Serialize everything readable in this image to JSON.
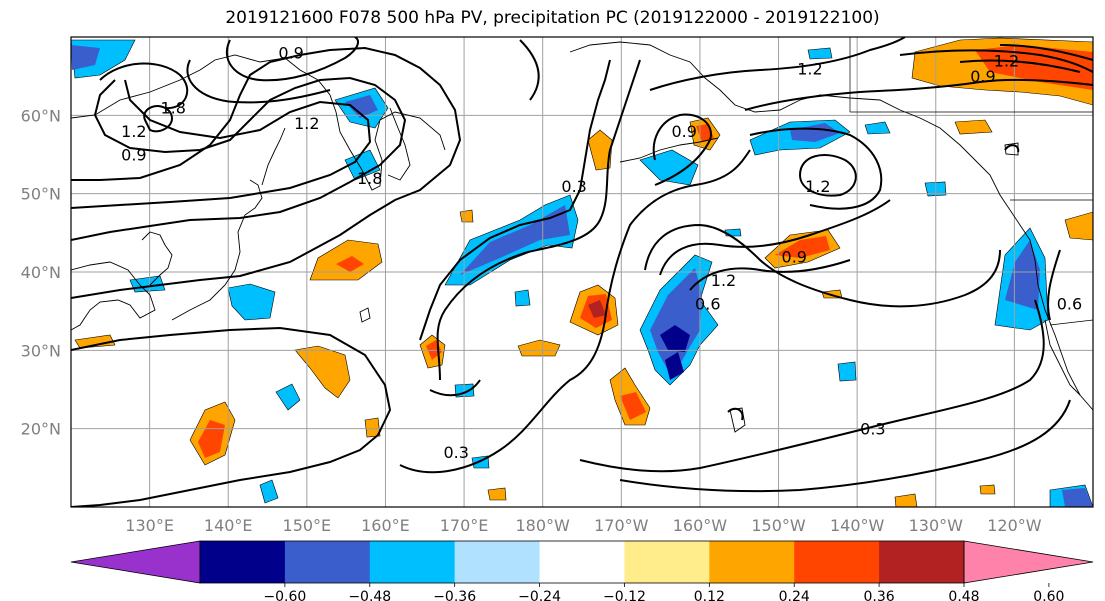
{
  "title": "2019121600 F078 500 hPa PV, precipitation PC (2019122000 - 2019122100)",
  "map": {
    "lon_range": [
      120,
      250
    ],
    "lat_range": [
      10,
      70
    ],
    "lat_ticks": [
      {
        "value": 20,
        "label": "20°N"
      },
      {
        "value": 30,
        "label": "30°N"
      },
      {
        "value": 40,
        "label": "40°N"
      },
      {
        "value": 50,
        "label": "50°N"
      },
      {
        "value": 60,
        "label": "60°N"
      }
    ],
    "lon_ticks": [
      {
        "value": 130,
        "label": "130°E"
      },
      {
        "value": 140,
        "label": "140°E"
      },
      {
        "value": 150,
        "label": "150°E"
      },
      {
        "value": 160,
        "label": "160°E"
      },
      {
        "value": 170,
        "label": "170°E"
      },
      {
        "value": 180,
        "label": "180°W"
      },
      {
        "value": 190,
        "label": "170°W"
      },
      {
        "value": 200,
        "label": "160°W"
      },
      {
        "value": 210,
        "label": "150°W"
      },
      {
        "value": 220,
        "label": "140°W"
      },
      {
        "value": 230,
        "label": "130°W"
      },
      {
        "value": 240,
        "label": "120°W"
      }
    ],
    "contour_labels": [
      {
        "text": "0.9",
        "lon": 148,
        "lat": 68
      },
      {
        "text": "1.8",
        "lon": 133,
        "lat": 61
      },
      {
        "text": "1.2",
        "lon": 128,
        "lat": 58
      },
      {
        "text": "0.9",
        "lon": 128,
        "lat": 55
      },
      {
        "text": "1.2",
        "lon": 150,
        "lat": 59
      },
      {
        "text": "1.8",
        "lon": 158,
        "lat": 52
      },
      {
        "text": "0.3",
        "lon": 184,
        "lat": 51
      },
      {
        "text": "0.9",
        "lon": 198,
        "lat": 58
      },
      {
        "text": "1.2",
        "lon": 214,
        "lat": 66
      },
      {
        "text": "1.2",
        "lon": 215,
        "lat": 51
      },
      {
        "text": "0.9",
        "lon": 212,
        "lat": 42
      },
      {
        "text": "1.2",
        "lon": 203,
        "lat": 39
      },
      {
        "text": "0.6",
        "lon": 201,
        "lat": 36
      },
      {
        "text": "0.3",
        "lon": 222,
        "lat": 20
      },
      {
        "text": "0.3",
        "lon": 169,
        "lat": 17
      },
      {
        "text": "0.9",
        "lon": 236,
        "lat": 65
      },
      {
        "text": "1.2",
        "lon": 239,
        "lat": 67
      },
      {
        "text": "0.6",
        "lon": 247,
        "lat": 36
      }
    ]
  },
  "colorbar": {
    "colors": [
      "#9932cc",
      "#00008b",
      "#3a5fcd",
      "#00bfff",
      "#b0e2ff",
      "#ffffff",
      "#ffec8b",
      "#ffa500",
      "#ff4500",
      "#b22222",
      "#ff82ab"
    ],
    "tick_labels": [
      "−0.60",
      "−0.48",
      "−0.36",
      "−0.24",
      "−0.12",
      "0.12",
      "0.24",
      "0.36",
      "0.48",
      "0.60"
    ]
  }
}
